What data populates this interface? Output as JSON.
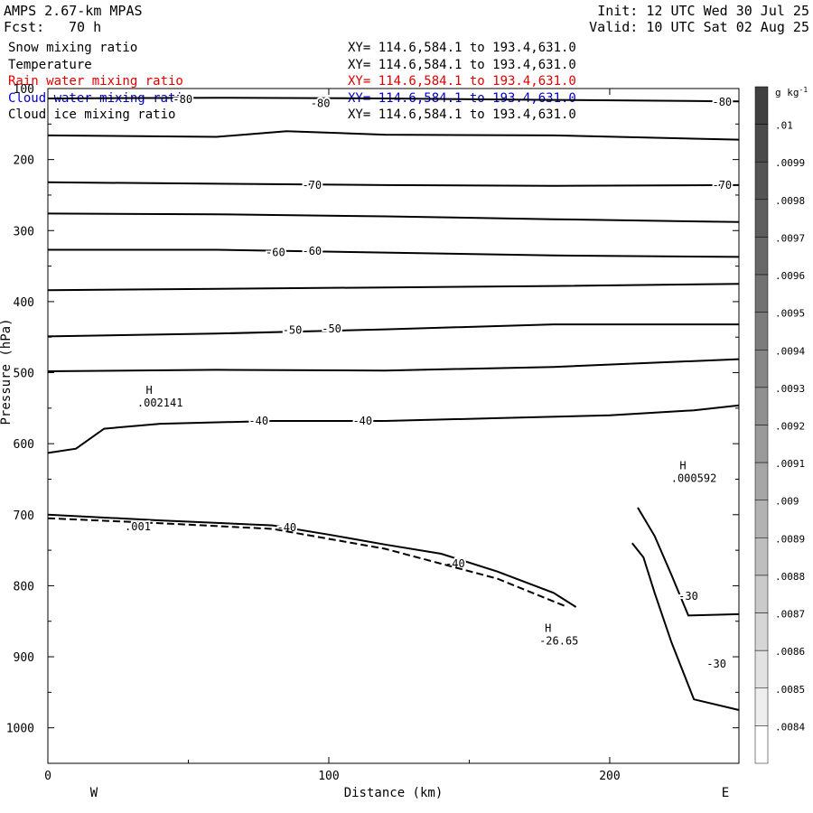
{
  "header": {
    "model": "AMPS 2.67-km MPAS",
    "forecast_label": "Fcst:",
    "forecast_value": "70 h",
    "init": "Init: 12 UTC Wed 30 Jul 25",
    "valid": "Valid: 10 UTC Sat 02 Aug 25"
  },
  "fields": [
    {
      "name": "Snow mixing ratio",
      "xy": "XY= 114.6,584.1 to 193.4,631.0",
      "color": "#000000"
    },
    {
      "name": "Temperature",
      "xy": "XY= 114.6,584.1 to 193.4,631.0",
      "color": "#000000"
    },
    {
      "name": "Rain water mixing ratio",
      "xy": "XY= 114.6,584.1 to 193.4,631.0",
      "color": "#e00000"
    },
    {
      "name": "Cloud water mixing ratio",
      "xy": "XY= 114.6,584.1 to 193.4,631.0",
      "color": "#0000cc"
    },
    {
      "name": "Cloud ice mixing ratio",
      "xy": "XY= 114.6,584.1 to 193.4,631.0",
      "color": "#000000"
    }
  ],
  "chart_data": {
    "type": "contour",
    "xlabel": "Distance (km)",
    "ylabel": "Pressure (hPa)",
    "xlim": [
      0,
      246
    ],
    "ylim": [
      100,
      1050
    ],
    "x_ticks": [
      "0",
      "100",
      "200"
    ],
    "x_tick_values": [
      0,
      100,
      200
    ],
    "y_ticks": [
      "100",
      "200",
      "300",
      "400",
      "500",
      "600",
      "700",
      "800",
      "900",
      "1000"
    ],
    "y_tick_values": [
      100,
      200,
      300,
      400,
      500,
      600,
      700,
      800,
      900,
      1000
    ],
    "left_end_label": "W",
    "right_end_label": "E",
    "colorbar": {
      "unit": "g kg",
      "unit_exp": "-1",
      "labels": [
        ".01",
        ".0099",
        ".0098",
        ".0097",
        ".0096",
        ".0095",
        ".0094",
        ".0093",
        ".0092",
        ".0091",
        ".009",
        ".0089",
        ".0088",
        ".0087",
        ".0086",
        ".0085",
        ".0084"
      ],
      "colors": [
        "#404040",
        "#4a4a4a",
        "#545454",
        "#5e5e5e",
        "#686868",
        "#727272",
        "#7c7c7c",
        "#868686",
        "#909090",
        "#9a9a9a",
        "#a6a6a6",
        "#b2b2b2",
        "#bebebe",
        "#cacaca",
        "#d6d6d6",
        "#e2e2e2",
        "#eeeeee",
        "#ffffff"
      ]
    },
    "temperature_contours": [
      {
        "level": -80,
        "points": [
          [
            0,
            114
          ],
          [
            60,
            113
          ],
          [
            120,
            114
          ],
          [
            180,
            116
          ],
          [
            246,
            118
          ]
        ],
        "labels": [
          [
            48,
            115,
            "-80"
          ],
          [
            97,
            121,
            "-80"
          ],
          [
            240,
            119,
            "-80"
          ]
        ]
      },
      {
        "level": null,
        "points": [
          [
            0,
            166
          ],
          [
            60,
            168
          ],
          [
            85,
            160
          ],
          [
            120,
            165
          ],
          [
            180,
            166
          ],
          [
            246,
            172
          ]
        ],
        "labels": []
      },
      {
        "level": -70,
        "points": [
          [
            0,
            232
          ],
          [
            60,
            234
          ],
          [
            120,
            236
          ],
          [
            180,
            237
          ],
          [
            246,
            236
          ]
        ],
        "labels": [
          [
            94,
            236,
            "-70"
          ],
          [
            240,
            236,
            "-70"
          ]
        ]
      },
      {
        "level": null,
        "points": [
          [
            0,
            276
          ],
          [
            60,
            277
          ],
          [
            120,
            280
          ],
          [
            180,
            284
          ],
          [
            246,
            288
          ]
        ],
        "labels": []
      },
      {
        "level": -60,
        "points": [
          [
            0,
            327
          ],
          [
            60,
            327
          ],
          [
            120,
            331
          ],
          [
            180,
            335
          ],
          [
            246,
            337
          ]
        ],
        "labels": [
          [
            81,
            331,
            "-60"
          ],
          [
            94,
            329,
            "-60"
          ]
        ]
      },
      {
        "level": null,
        "points": [
          [
            0,
            384
          ],
          [
            60,
            382
          ],
          [
            120,
            380
          ],
          [
            180,
            378
          ],
          [
            246,
            375
          ]
        ],
        "labels": []
      },
      {
        "level": -50,
        "points": [
          [
            0,
            449
          ],
          [
            60,
            445
          ],
          [
            120,
            439
          ],
          [
            180,
            432
          ],
          [
            246,
            432
          ]
        ],
        "labels": [
          [
            87,
            440,
            "-50"
          ],
          [
            101,
            438,
            "-50"
          ]
        ]
      },
      {
        "level": null,
        "points": [
          [
            0,
            498
          ],
          [
            60,
            496
          ],
          [
            120,
            497
          ],
          [
            180,
            492
          ],
          [
            246,
            481
          ]
        ],
        "labels": []
      },
      {
        "level": -40,
        "points": [
          [
            0,
            613
          ],
          [
            10,
            607
          ],
          [
            20,
            579
          ],
          [
            40,
            572
          ],
          [
            80,
            568
          ],
          [
            120,
            568
          ],
          [
            160,
            564
          ],
          [
            200,
            560
          ],
          [
            230,
            553
          ],
          [
            246,
            546
          ]
        ],
        "labels": [
          [
            75,
            568,
            "-40"
          ],
          [
            112,
            568,
            "-40"
          ]
        ]
      },
      {
        "level": -40,
        "points": [
          [
            0,
            700
          ],
          [
            40,
            708
          ],
          [
            80,
            715
          ],
          [
            100,
            728
          ],
          [
            120,
            742
          ],
          [
            140,
            755
          ],
          [
            160,
            780
          ],
          [
            180,
            810
          ],
          [
            188,
            830
          ]
        ],
        "labels": [
          [
            85,
            718,
            "-40"
          ],
          [
            145,
            769,
            "-40"
          ]
        ]
      },
      {
        "level": -30,
        "points": [
          [
            210,
            690
          ],
          [
            216,
            730
          ],
          [
            222,
            785
          ],
          [
            228,
            842
          ],
          [
            246,
            840
          ]
        ],
        "labels": [
          [
            228,
            815,
            "-30"
          ],
          [
            238,
            910,
            "-30"
          ]
        ]
      },
      {
        "level": -30,
        "points": [
          [
            208,
            740
          ],
          [
            212,
            760
          ],
          [
            216,
            810
          ],
          [
            222,
            880
          ],
          [
            230,
            960
          ],
          [
            246,
            975
          ]
        ],
        "labels": []
      }
    ],
    "snow_contours": [
      {
        "level": 0.001,
        "points": [
          [
            0,
            705
          ],
          [
            40,
            712
          ],
          [
            80,
            720
          ],
          [
            120,
            748
          ],
          [
            160,
            790
          ],
          [
            185,
            830
          ]
        ],
        "labels": [
          [
            32,
            717,
            ".001"
          ]
        ]
      }
    ],
    "extrema": [
      {
        "type": "H",
        "value": ".002141",
        "x": 38,
        "p": 540
      },
      {
        "type": "H",
        "value": ".000592",
        "x": 228,
        "p": 646
      },
      {
        "type": "H",
        "value": "-26.65",
        "x": 180,
        "p": 875
      }
    ]
  }
}
